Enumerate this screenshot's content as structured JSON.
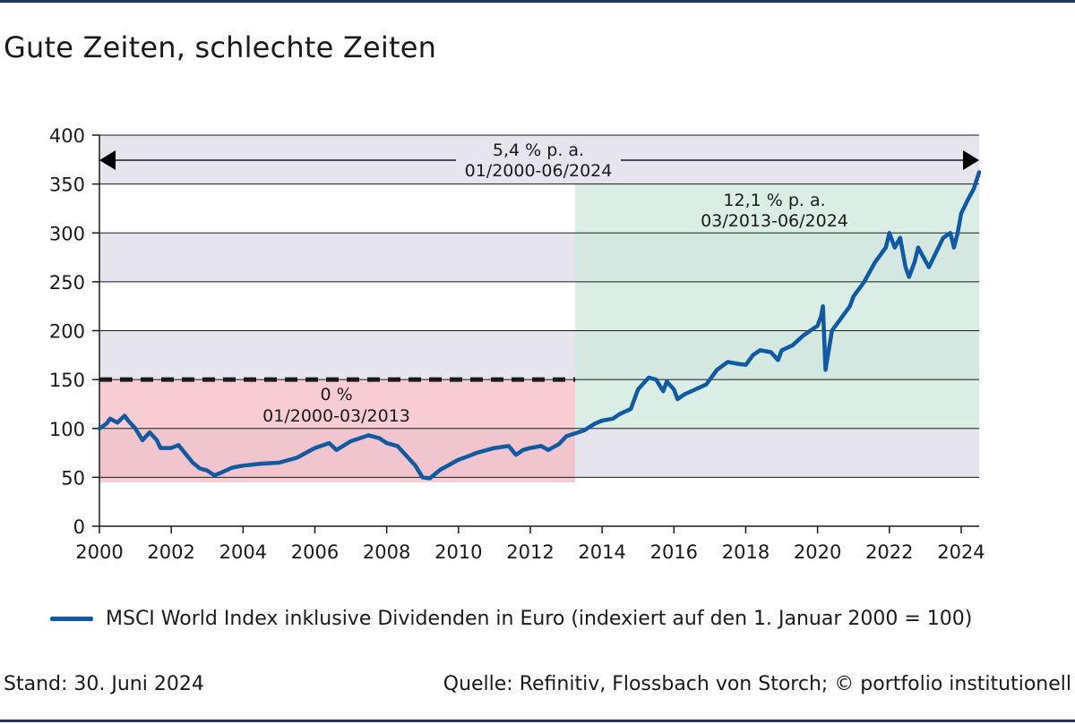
{
  "title": "Gute Zeiten, schlechte Zeiten",
  "legend": {
    "label": "MSCI World Index inklusive Dividenden in Euro (indexiert auf den 1. Januar 2000 = 100)",
    "color": "#0f5aa0"
  },
  "footer": {
    "left": "Stand: 30. Juni 2024",
    "right": "Quelle: Refinitiv, Flossbach von Storch; © portfolio institutionell"
  },
  "colors": {
    "line": "#0f5aa0",
    "band": "#e6e5ee",
    "red_zone": "#f4b8c2",
    "green_zone": "#cde8dc",
    "rule": "#1f3a5f"
  },
  "chart_data": {
    "type": "line",
    "xlim": [
      2000,
      2024.5
    ],
    "ylim": [
      0,
      400
    ],
    "x_ticks": [
      2000,
      2002,
      2004,
      2006,
      2008,
      2010,
      2012,
      2014,
      2016,
      2018,
      2020,
      2022,
      2024
    ],
    "x_tick_labels": [
      "2000",
      "2002",
      "2004",
      "2006",
      "2008",
      "2010",
      "2012",
      "2014",
      "2016",
      "2018",
      "2020",
      "2022",
      "2024"
    ],
    "y_ticks": [
      0,
      50,
      100,
      150,
      200,
      250,
      300,
      350,
      400
    ],
    "y_tick_labels": [
      "0",
      "50",
      "100",
      "150",
      "200",
      "250",
      "300",
      "350",
      "400"
    ],
    "grid": true,
    "legend_position": "bottom",
    "series": [
      {
        "name": "MSCI World Index inklusive Dividenden in Euro (indexiert auf den 1. Januar 2000 = 100)",
        "x": [
          2000.0,
          2000.2,
          2000.3,
          2000.5,
          2000.7,
          2000.8,
          2001.0,
          2001.2,
          2001.4,
          2001.6,
          2001.7,
          2002.0,
          2002.2,
          2002.4,
          2002.6,
          2002.8,
          2003.0,
          2003.2,
          2003.4,
          2003.7,
          2004.0,
          2004.5,
          2005.0,
          2005.5,
          2006.0,
          2006.4,
          2006.6,
          2007.0,
          2007.5,
          2007.8,
          2008.0,
          2008.3,
          2008.6,
          2008.8,
          2009.0,
          2009.2,
          2009.5,
          2009.8,
          2010.0,
          2010.3,
          2010.5,
          2011.0,
          2011.4,
          2011.6,
          2011.8,
          2012.0,
          2012.3,
          2012.5,
          2012.8,
          2013.0,
          2013.25,
          2013.5,
          2013.8,
          2014.0,
          2014.3,
          2014.5,
          2014.8,
          2015.0,
          2015.3,
          2015.5,
          2015.7,
          2015.8,
          2016.0,
          2016.1,
          2016.3,
          2016.6,
          2016.9,
          2017.2,
          2017.5,
          2017.8,
          2018.0,
          2018.2,
          2018.4,
          2018.7,
          2018.9,
          2019.0,
          2019.3,
          2019.6,
          2019.8,
          2020.0,
          2020.1,
          2020.15,
          2020.22,
          2020.4,
          2020.6,
          2020.9,
          2021.0,
          2021.3,
          2021.6,
          2021.9,
          2022.0,
          2022.15,
          2022.3,
          2022.45,
          2022.55,
          2022.7,
          2022.8,
          2022.95,
          2023.1,
          2023.3,
          2023.5,
          2023.7,
          2023.8,
          2023.9,
          2024.0,
          2024.2,
          2024.35,
          2024.5
        ],
        "y": [
          100,
          105,
          110,
          106,
          113,
          108,
          100,
          88,
          96,
          88,
          80,
          80,
          83,
          74,
          65,
          59,
          57,
          52,
          55,
          60,
          62,
          64,
          65,
          70,
          80,
          85,
          78,
          87,
          93,
          90,
          85,
          82,
          70,
          62,
          50,
          49,
          58,
          64,
          68,
          72,
          75,
          80,
          82,
          73,
          78,
          80,
          82,
          78,
          84,
          92,
          95,
          98,
          105,
          108,
          110,
          115,
          120,
          140,
          152,
          150,
          138,
          148,
          140,
          130,
          135,
          140,
          145,
          160,
          168,
          166,
          165,
          175,
          180,
          178,
          170,
          180,
          185,
          195,
          200,
          205,
          215,
          225,
          160,
          200,
          210,
          225,
          235,
          250,
          270,
          285,
          300,
          285,
          295,
          265,
          255,
          270,
          285,
          275,
          265,
          280,
          295,
          300,
          285,
          300,
          320,
          335,
          345,
          362
        ]
      }
    ],
    "reference_line": {
      "y": 150,
      "x_range": [
        2000,
        2013.25
      ],
      "style": "dashed"
    },
    "zones": [
      {
        "x_range": [
          2000,
          2013.25
        ],
        "y_range": [
          45,
          150
        ],
        "color": "red"
      },
      {
        "x_range": [
          2013.25,
          2024.5
        ],
        "y_range": [
          100,
          350
        ],
        "color": "green"
      }
    ],
    "annotations": [
      {
        "label": "5,4 % p. a.",
        "period": "01/2000-06/2024"
      },
      {
        "label": "12,1 % p. a.",
        "period": "03/2013-06/2024"
      },
      {
        "label": "0 %",
        "period": "01/2000-03/2013"
      }
    ]
  }
}
